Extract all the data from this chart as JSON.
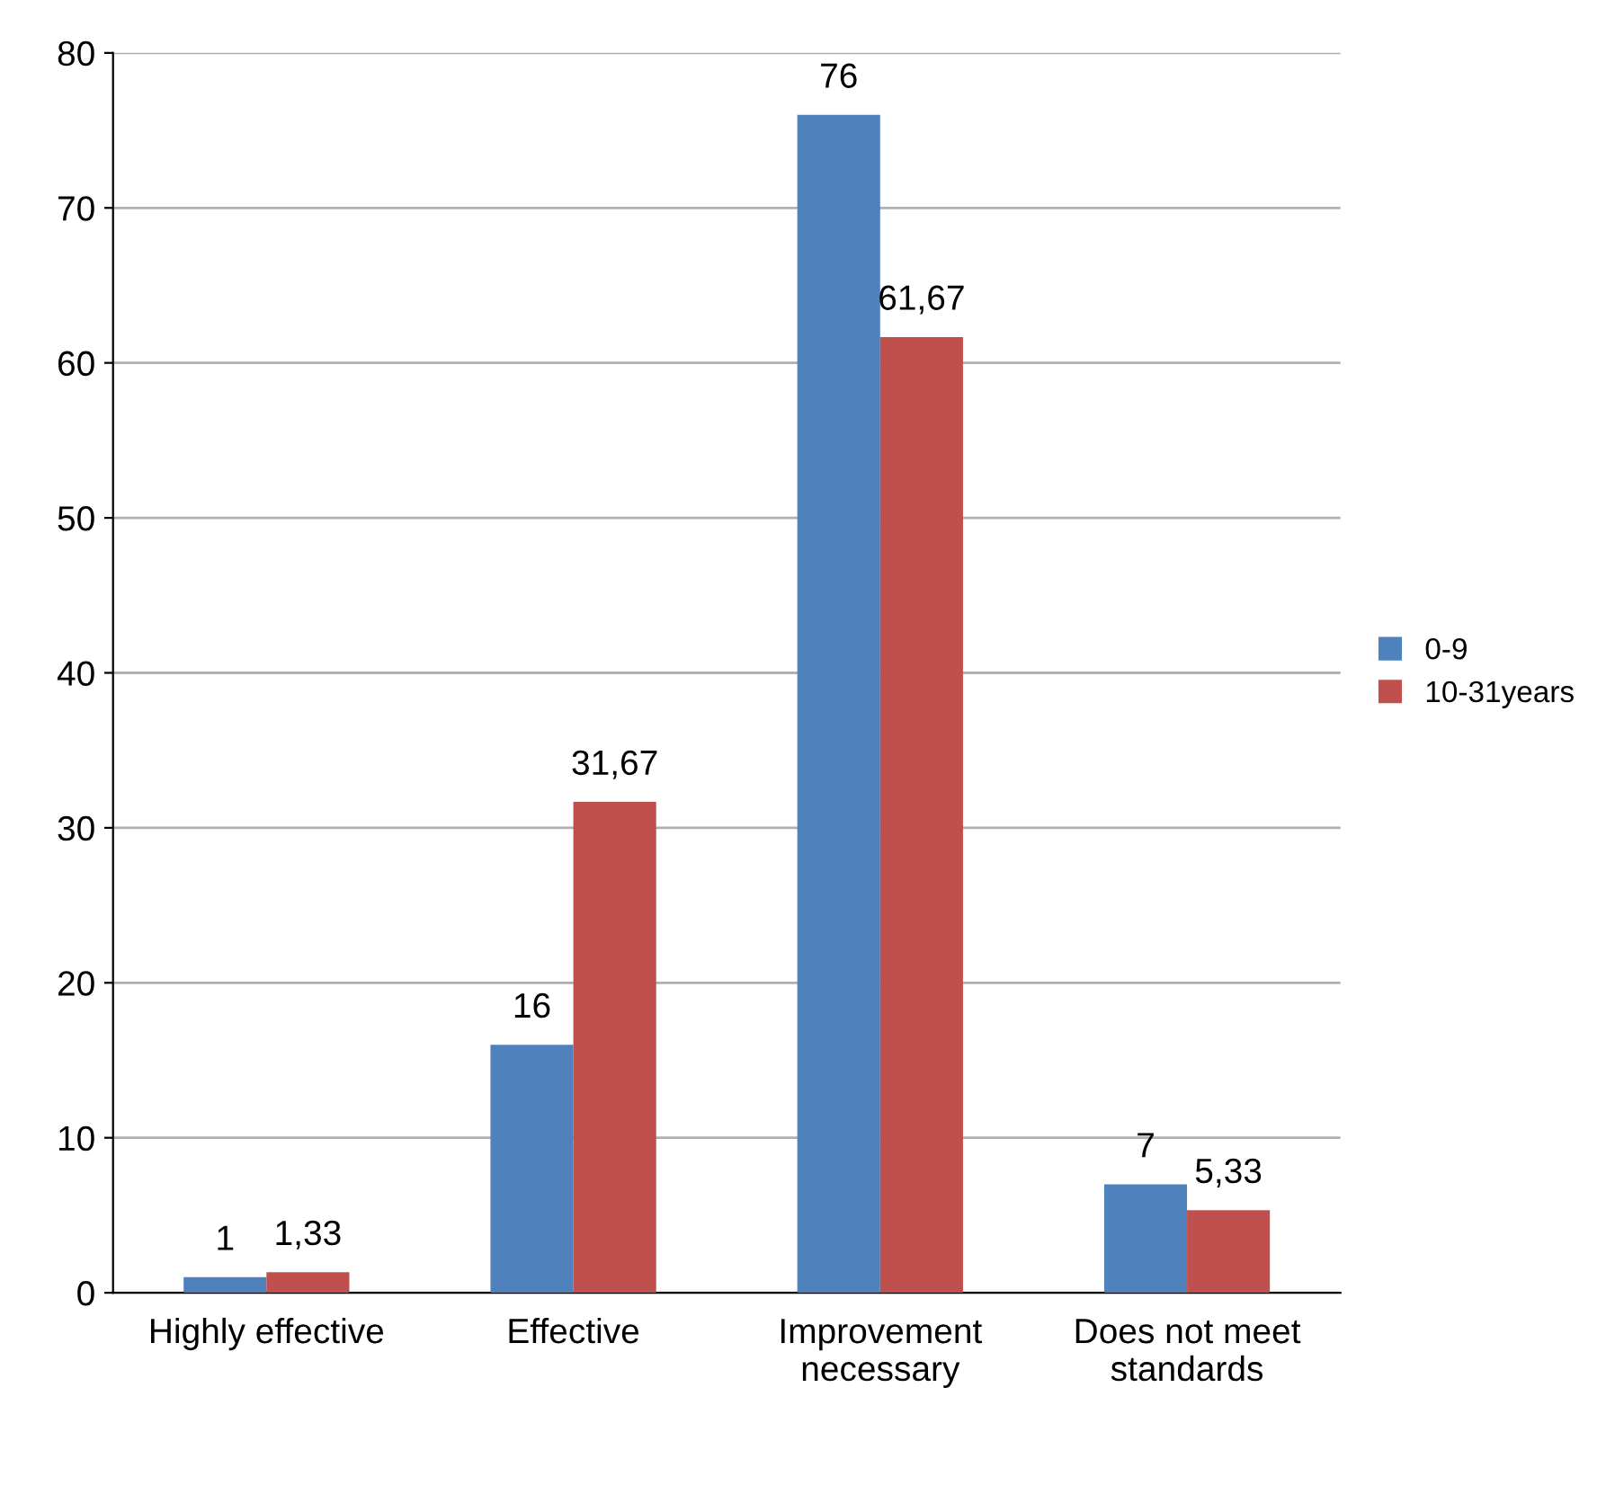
{
  "chart_data": {
    "type": "bar",
    "categories": [
      "Highly effective",
      "Effective",
      "Improvement\nnecessary",
      "Does not meet\nstandards"
    ],
    "series": [
      {
        "name": "0-9",
        "color": "#4f81bd",
        "values": [
          1,
          16,
          76,
          7
        ],
        "value_labels": [
          "1",
          "16",
          "76",
          "7"
        ]
      },
      {
        "name": "10-31years",
        "color": "#c0504d",
        "values": [
          1.33,
          31.67,
          61.67,
          5.33
        ],
        "value_labels": [
          "1,33",
          "31,67",
          "61,67",
          "5,33"
        ]
      }
    ],
    "ylim": [
      0,
      80
    ],
    "yticks": [
      0,
      10,
      20,
      30,
      40,
      50,
      60,
      70,
      80
    ],
    "grid": "y",
    "legend": "right"
  }
}
